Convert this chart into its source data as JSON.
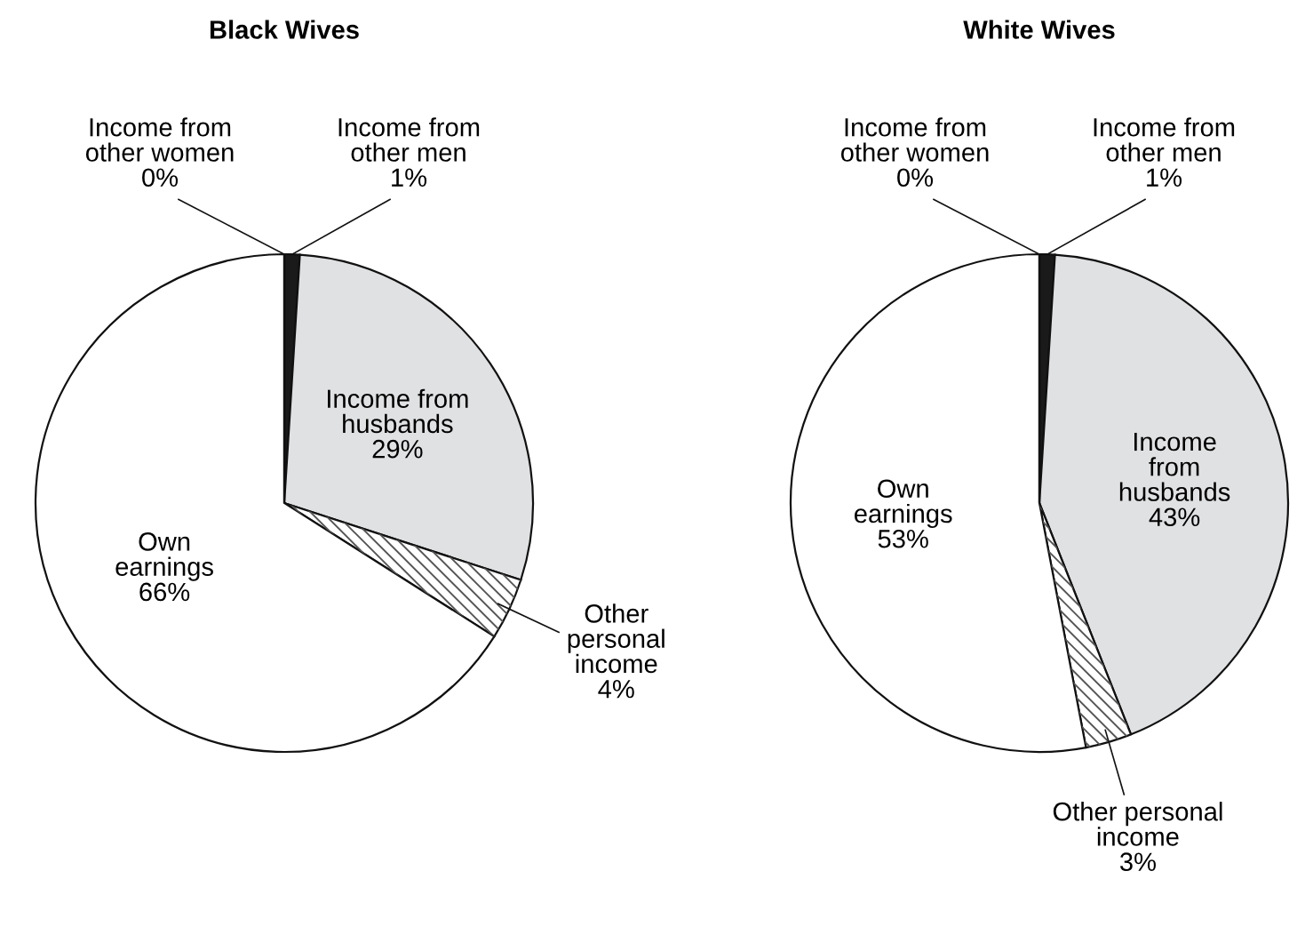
{
  "chart_data": [
    {
      "type": "pie",
      "title": "Black Wives",
      "categories": [
        "Income from\nother men",
        "Income from\nhusbands",
        "Other\npersonal\nincome",
        "Own\nearnings",
        "Income from\nother women"
      ],
      "values": [
        1,
        29,
        4,
        66,
        0
      ],
      "value_labels": [
        "1%",
        "29%",
        "4%",
        "66%",
        "0%"
      ],
      "colors": [
        "#1a1a1a",
        "#e0e1e3",
        "#ffffff",
        "#ffffff",
        "#ffffff"
      ]
    },
    {
      "type": "pie",
      "title": "White Wives",
      "categories": [
        "Income from\nother men",
        "Income\nfrom\nhusbands",
        "Other personal\nincome",
        "Own\nearnings",
        "Income from\nother women"
      ],
      "values": [
        1,
        43,
        3,
        53,
        0
      ],
      "value_labels": [
        "1%",
        "43%",
        "3%",
        "53%",
        "0%"
      ],
      "colors": [
        "#1a1a1a",
        "#e0e1e3",
        "#ffffff",
        "#ffffff",
        "#ffffff"
      ]
    }
  ]
}
